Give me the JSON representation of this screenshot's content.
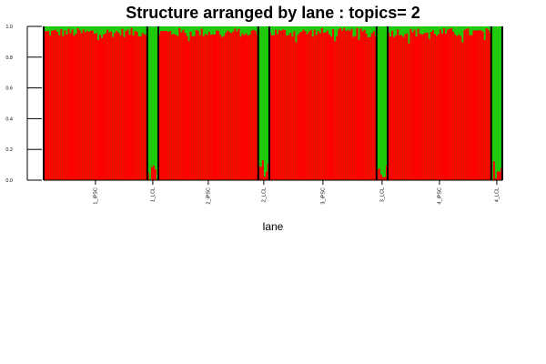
{
  "chart_data": {
    "type": "bar",
    "subtype": "stacked-structure-plot",
    "title": "Structure arranged by lane : topics= 2",
    "xlabel": "lane",
    "ylabel": "",
    "ylim": [
      0,
      1
    ],
    "yticks": [
      "0.0",
      "0.2",
      "0.4",
      "0.6",
      "0.8",
      "1.0"
    ],
    "series": [
      {
        "name": "",
        "color": "#ff0000"
      },
      {
        "name": "",
        "color": "#1fc90b"
      }
    ],
    "groups": [
      {
        "label": "1_iPSC",
        "samples": 56,
        "topic1_mean": 0.96,
        "topic1_variation": 0.03
      },
      {
        "label": "1_LCL",
        "samples": 6,
        "topic1_mean": 0.06,
        "topic1_variation": 0.06
      },
      {
        "label": "2_iPSC",
        "samples": 54,
        "topic1_mean": 0.96,
        "topic1_variation": 0.03
      },
      {
        "label": "2_LCL",
        "samples": 6,
        "topic1_mean": 0.08,
        "topic1_variation": 0.06
      },
      {
        "label": "3_iPSC",
        "samples": 58,
        "topic1_mean": 0.96,
        "topic1_variation": 0.03
      },
      {
        "label": "3_LCL",
        "samples": 6,
        "topic1_mean": 0.06,
        "topic1_variation": 0.05
      },
      {
        "label": "4_iPSC",
        "samples": 56,
        "topic1_mean": 0.96,
        "topic1_variation": 0.03
      },
      {
        "label": "4_LCL",
        "samples": 6,
        "topic1_mean": 0.07,
        "topic1_variation": 0.06
      }
    ],
    "grid": false,
    "legend": "none"
  }
}
